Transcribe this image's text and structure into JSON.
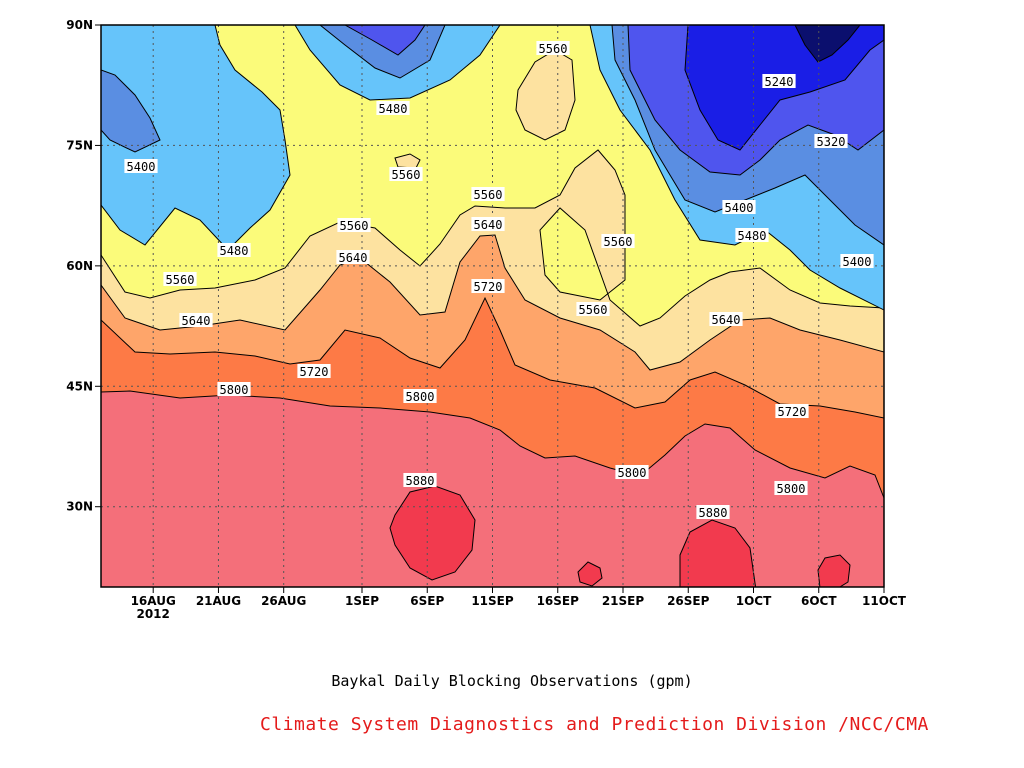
{
  "chart_data": {
    "type": "contour",
    "title": "Baykal Daily Blocking Observations (gpm)",
    "credit": "Climate System Diagnostics and Prediction Division /NCC/CMA",
    "x_start_year_label": "2012",
    "x_ticks": [
      "16AUG",
      "21AUG",
      "26AUG",
      "1SEP",
      "6SEP",
      "11SEP",
      "16SEP",
      "21SEP",
      "26SEP",
      "1OCT",
      "6OCT",
      "11OCT"
    ],
    "x_range": [
      "2012-08-12",
      "2012-10-11"
    ],
    "y_ticks": [
      "30N",
      "45N",
      "60N",
      "75N",
      "90N"
    ],
    "ylim": [
      20,
      90
    ],
    "contour_levels": [
      5240,
      5320,
      5400,
      5480,
      5560,
      5640,
      5720,
      5800,
      5880
    ],
    "contour_labels": [
      {
        "text": "5560"
      },
      {
        "text": "5480"
      },
      {
        "text": "5400"
      },
      {
        "text": "5560"
      },
      {
        "text": "5560"
      },
      {
        "text": "5480"
      },
      {
        "text": "5560"
      },
      {
        "text": "5640"
      },
      {
        "text": "5560"
      },
      {
        "text": "5560"
      },
      {
        "text": "5640"
      },
      {
        "text": "5640"
      },
      {
        "text": "5720"
      },
      {
        "text": "5720"
      },
      {
        "text": "5560"
      },
      {
        "text": "5800"
      },
      {
        "text": "5800"
      },
      {
        "text": "5880"
      },
      {
        "text": "5240"
      },
      {
        "text": "5320"
      },
      {
        "text": "5400"
      },
      {
        "text": "5480"
      },
      {
        "text": "5400"
      },
      {
        "text": "5640"
      },
      {
        "text": "5720"
      },
      {
        "text": "5800"
      },
      {
        "text": "5800"
      },
      {
        "text": "5880"
      }
    ],
    "colors": {
      "below_5240": "#0b0f6e",
      "5240_5320": "#1a1ee6",
      "5320_5400": "#4f55ee",
      "5400_5480": "#5a8ee2",
      "5480_5560": "#66c4fa",
      "5560_5640": "#fbfb7a",
      "5640_5720": "#fde2a0",
      "5720_5800": "#fea56a",
      "5800_5880": "#fd7a46",
      "above_5880": "#f46f7a",
      "peak": "#f23a4e"
    }
  }
}
